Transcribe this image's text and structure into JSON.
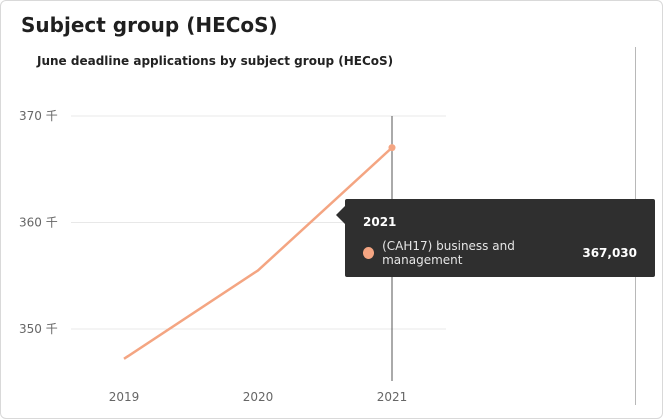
{
  "header": {
    "title": "Subject group (HECoS)"
  },
  "chart_data": {
    "type": "line",
    "title": "June deadline applications by subject group (HECoS)",
    "xlabel": "",
    "ylabel": "",
    "categories": [
      "2019",
      "2020",
      "2021"
    ],
    "y_ticks": [
      350000,
      360000,
      370000
    ],
    "y_tick_labels": [
      "350 千",
      "360 千",
      "370 千"
    ],
    "ylim": [
      347000,
      371000
    ],
    "grid": true,
    "series": [
      {
        "name": "(CAH17) business and management",
        "values": [
          347200,
          355500,
          367030
        ],
        "color": "#f4a582"
      }
    ],
    "tooltip": {
      "title": "2021",
      "series_name": "(CAH17) business and management",
      "value": "367,030"
    }
  },
  "colors": {
    "series": "#f4a582",
    "gridline": "#e8e8e8",
    "crosshair": "#555555",
    "tooltip_bg": "#2f2f2f"
  }
}
